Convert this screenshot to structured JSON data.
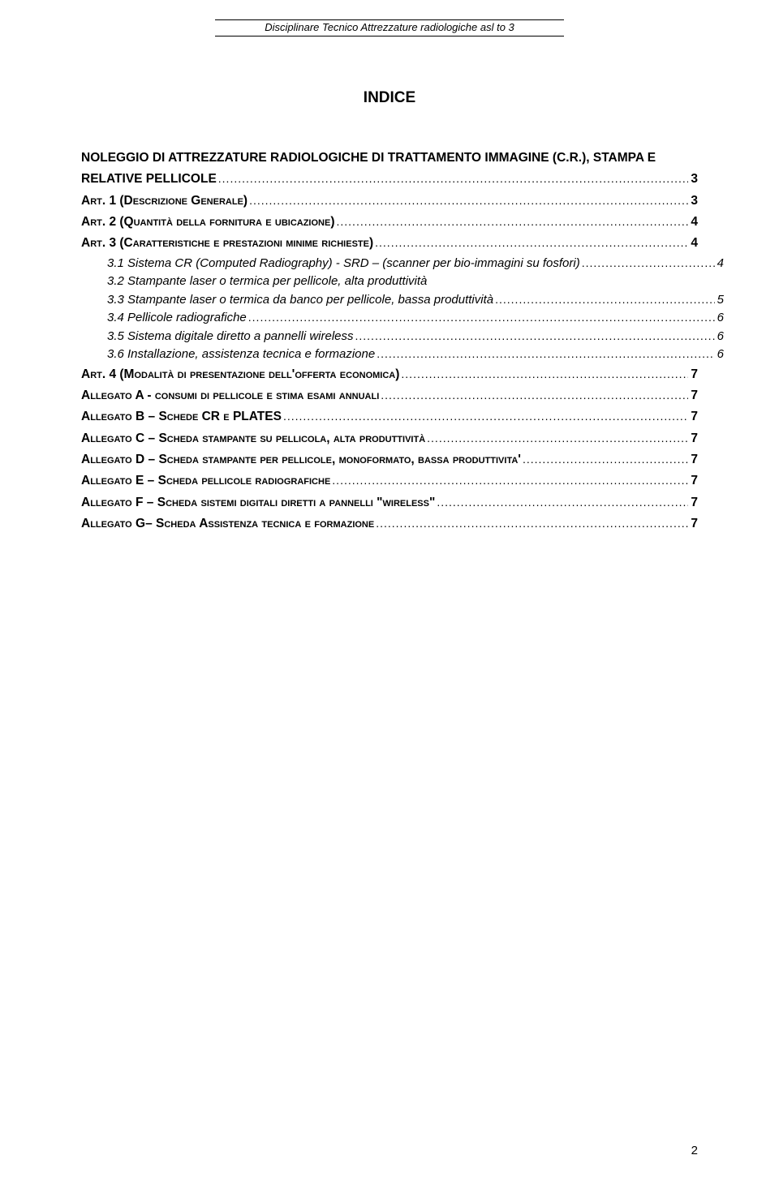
{
  "header": {
    "text": "Disciplinare Tecnico Attrezzature radiologiche asl to 3"
  },
  "title": "INDICE",
  "toc_title": {
    "line1": "NOLEGGIO DI ATTREZZATURE RADIOLOGICHE DI TRATTAMENTO IMMAGINE (C.R.), STAMPA E",
    "line2_label": "RELATIVE PELLICOLE",
    "line2_page": "3"
  },
  "toc": [
    {
      "type": "bold",
      "label": "Art. 1 (Descrizione Generale)",
      "page": "3"
    },
    {
      "type": "bold",
      "label": "Art. 2 (Quantità della fornitura e ubicazione)",
      "page": "4"
    },
    {
      "type": "bold",
      "label": "Art. 3 (Caratteristiche e prestazioni minime richieste)",
      "page": "4"
    },
    {
      "type": "italic",
      "label": "3.1 Sistema CR (Computed Radiography) - SRD – (scanner per bio-immagini su fosfori)",
      "page": "4"
    },
    {
      "type": "italic-nopage",
      "label": "3.2 Stampante laser o termica per pellicole, alta produttività"
    },
    {
      "type": "italic",
      "label": "3.3 Stampante  laser o termica da banco per pellicole, bassa produttività",
      "page": "5"
    },
    {
      "type": "italic",
      "label": "3.4     Pellicole radiografiche",
      "page": "6"
    },
    {
      "type": "italic",
      "label": "3.5     Sistema digitale diretto a pannelli  wireless",
      "page": "6"
    },
    {
      "type": "italic",
      "label": "3.6     Installazione, assistenza tecnica e formazione",
      "page": "6"
    },
    {
      "type": "bold",
      "label": "Art. 4 (Modalità di presentazione dell'offerta economica)",
      "page": "7"
    },
    {
      "type": "bold",
      "label": "Allegato A - consumi di pellicole e stima esami annuali",
      "page": "7"
    },
    {
      "type": "bold",
      "label": "Allegato B – Schede CR e PLATES",
      "page": "7"
    },
    {
      "type": "bold",
      "label": "Allegato C – Scheda stampante  su pellicola, alta produttività",
      "page": "7"
    },
    {
      "type": "bold",
      "label": "Allegato D – Scheda stampante  per pellicole, monoformato, bassa produttivita'",
      "page": "7"
    },
    {
      "type": "bold",
      "label": "Allegato E – Scheda pellicole radiografiche",
      "page": "7"
    },
    {
      "type": "bold",
      "label": "Allegato F – Scheda sistemi digitali diretti a pannelli \"wireless\"",
      "page": "7"
    },
    {
      "type": "bold",
      "label": "Allegato G– Scheda Assistenza tecnica e formazione",
      "page": "7"
    }
  ],
  "page_number": "2"
}
